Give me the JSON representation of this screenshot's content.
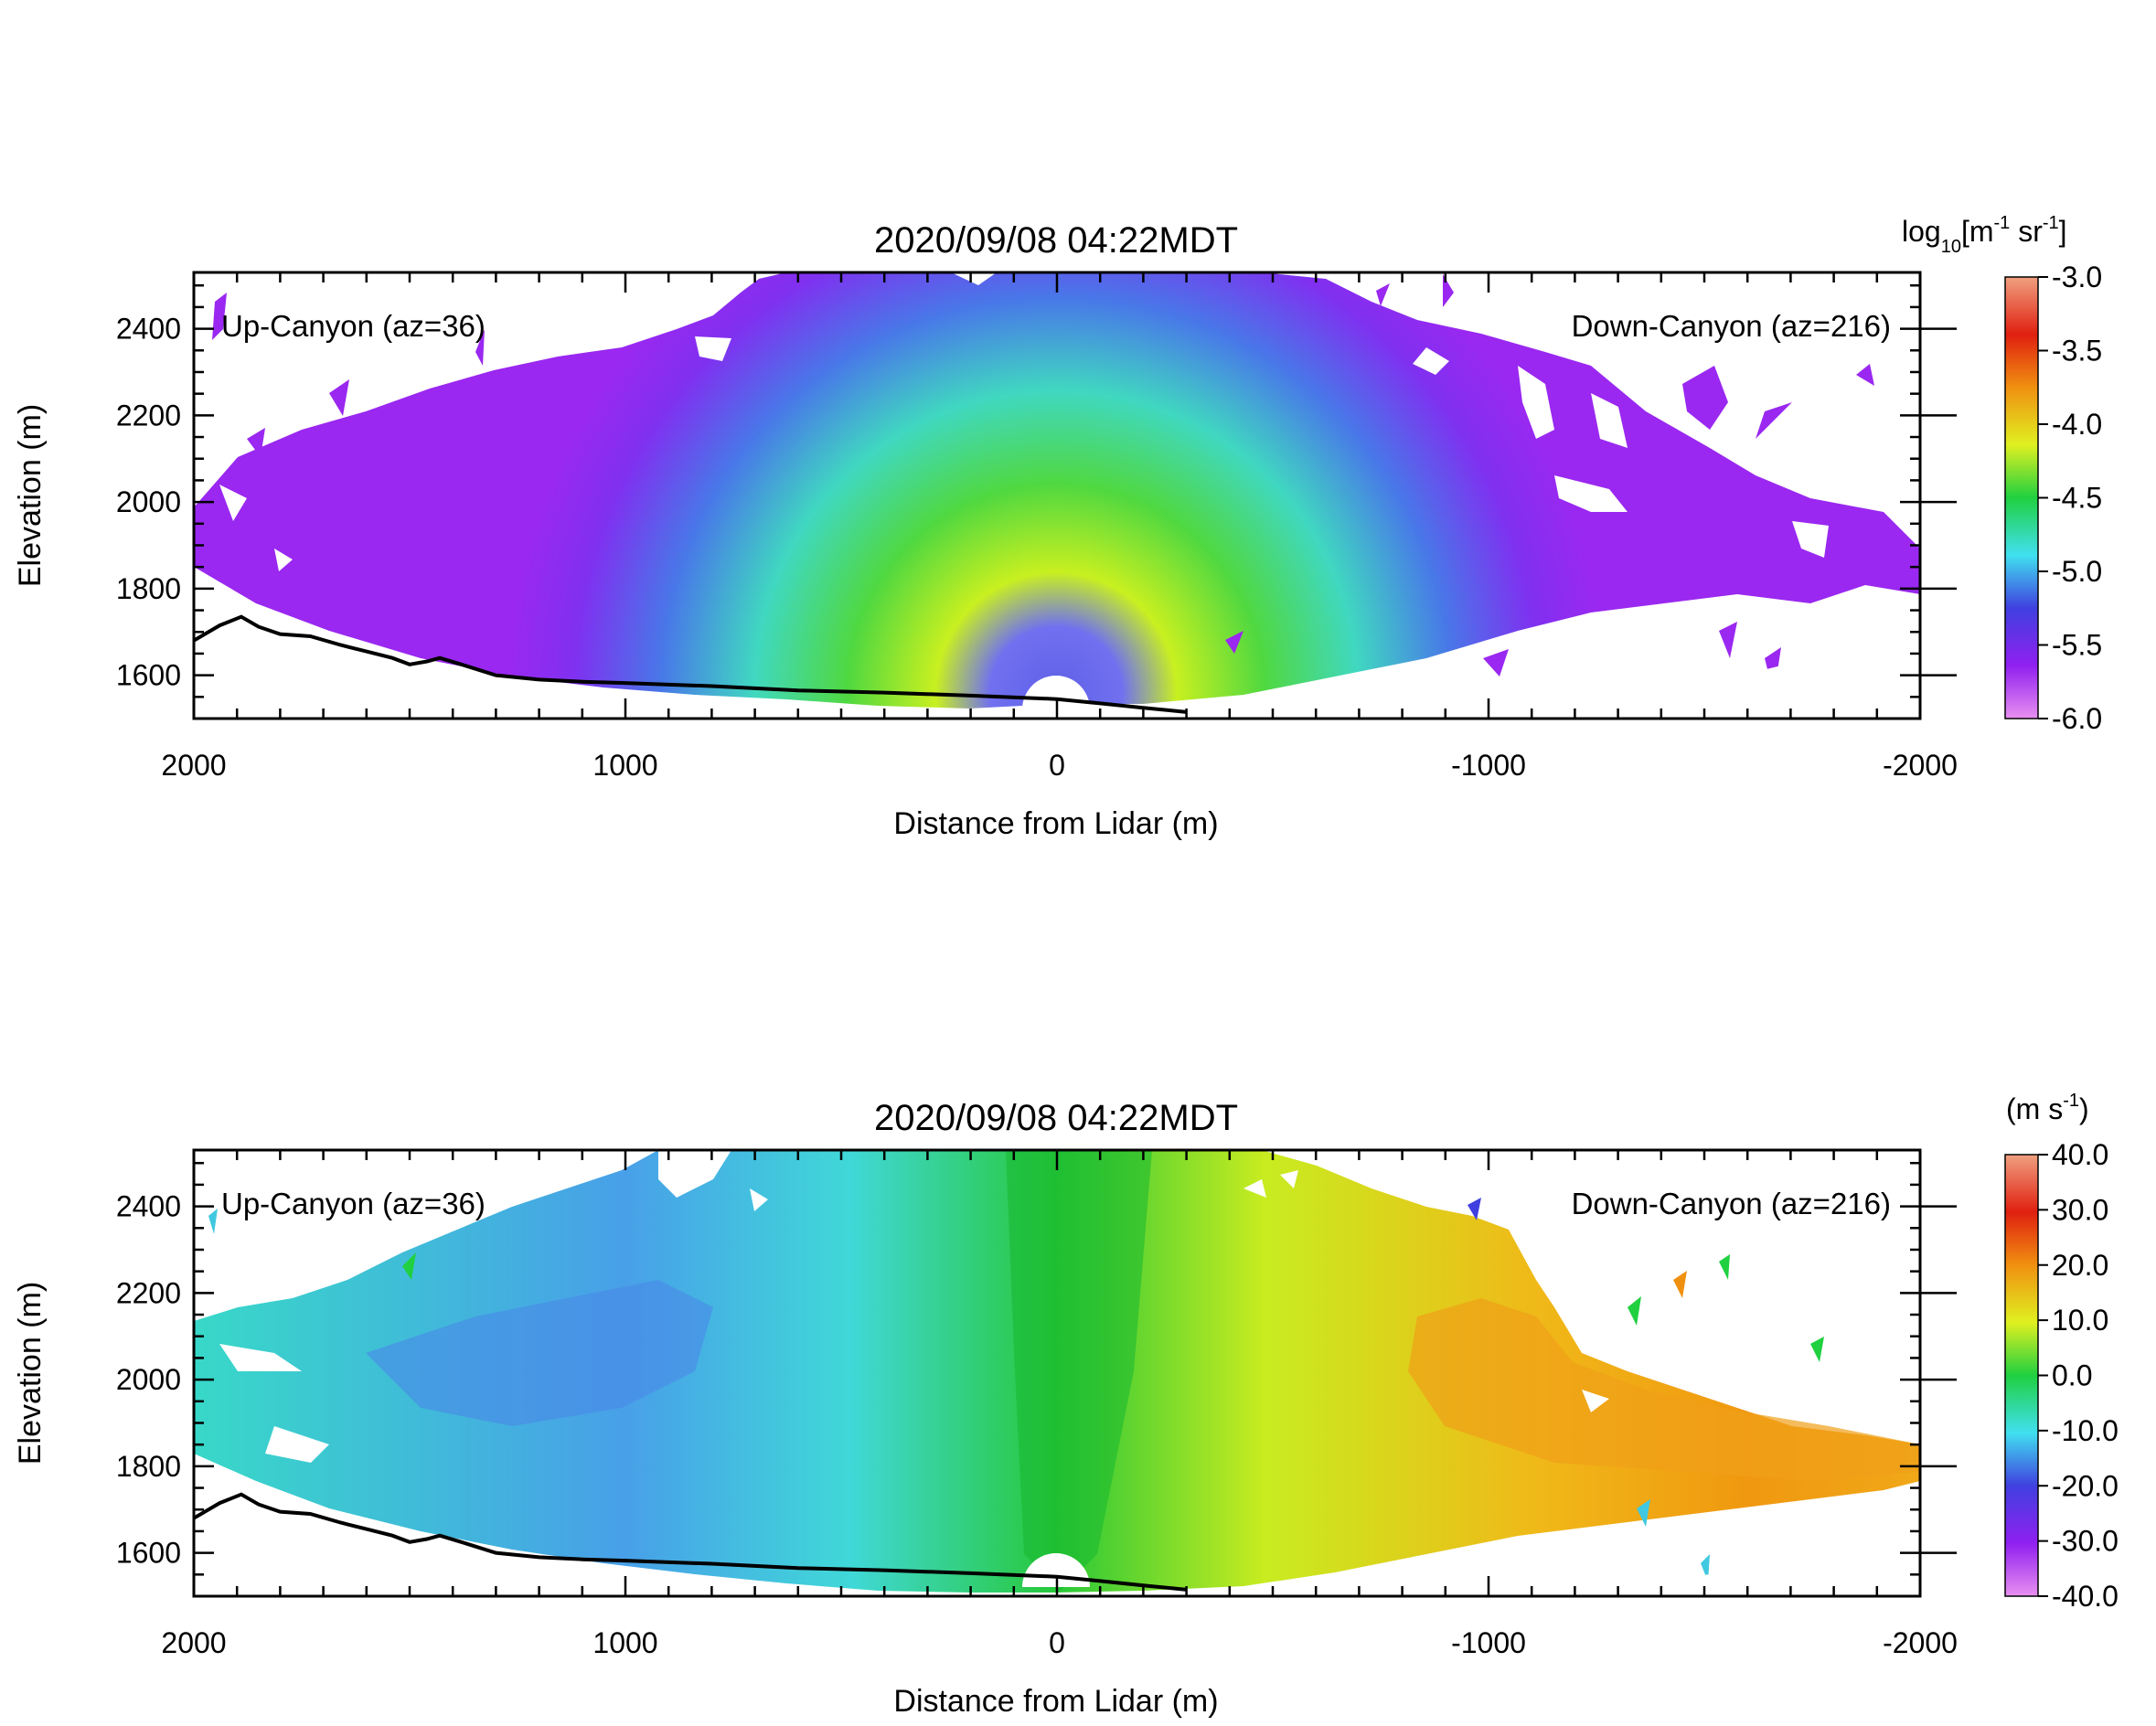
{
  "chart_data": [
    {
      "type": "heatmap",
      "title": "2020/09/08 04:22MDT",
      "xlabel": "Distance from Lidar (m)",
      "ylabel": "Elevation (m)",
      "xlim": [
        2000,
        -2000
      ],
      "ylim": [
        1500,
        2530
      ],
      "x_ticks": [
        "2000",
        "1000",
        "0",
        "-1000",
        "-2000"
      ],
      "x_tick_values": [
        2000,
        1000,
        0,
        -1000,
        -2000
      ],
      "y_ticks": [
        "1600",
        "1800",
        "2000",
        "2200",
        "2400"
      ],
      "y_tick_values": [
        1600,
        1800,
        2000,
        2200,
        2400
      ],
      "annotations": [
        "Up-Canyon (az=36)",
        "Down-Canyon (az=216)"
      ],
      "variable": "backscatter",
      "colorbar": {
        "unit_main": "log",
        "unit_sub": "10",
        "unit_rest": "[m",
        "unit_sup1": "-1",
        "unit_mid": " sr",
        "unit_sup2": "-1",
        "unit_end": "]",
        "range": [
          -6.0,
          -3.0
        ],
        "ticks": [
          "-3.0",
          "-3.5",
          "-4.0",
          "-4.5",
          "-5.0",
          "-5.5",
          "-6.0"
        ],
        "tick_values": [
          -3.0,
          -3.5,
          -4.0,
          -4.5,
          -5.0,
          -5.5,
          -6.0
        ],
        "colors": [
          "#e890f0",
          "#9020f0",
          "#4040e0",
          "#40e0f0",
          "#20d040",
          "#e0f020",
          "#f09010",
          "#e02010",
          "#f0a080"
        ]
      },
      "terrain": [
        [
          2000,
          1680
        ],
        [
          1940,
          1715
        ],
        [
          1890,
          1735
        ],
        [
          1850,
          1712
        ],
        [
          1800,
          1695
        ],
        [
          1730,
          1690
        ],
        [
          1660,
          1670
        ],
        [
          1600,
          1655
        ],
        [
          1540,
          1640
        ],
        [
          1500,
          1625
        ],
        [
          1460,
          1632
        ],
        [
          1430,
          1640
        ],
        [
          1380,
          1625
        ],
        [
          1300,
          1600
        ],
        [
          1200,
          1590
        ],
        [
          1100,
          1585
        ],
        [
          1000,
          1582
        ],
        [
          800,
          1575
        ],
        [
          600,
          1565
        ],
        [
          400,
          1560
        ],
        [
          200,
          1553
        ],
        [
          0,
          1545
        ],
        [
          -100,
          1535
        ],
        [
          -200,
          1525
        ],
        [
          -300,
          1515
        ]
      ]
    },
    {
      "type": "heatmap",
      "title": "2020/09/08 04:22MDT",
      "xlabel": "Distance from Lidar (m)",
      "ylabel": "Elevation (m)",
      "xlim": [
        2000,
        -2000
      ],
      "ylim": [
        1500,
        2530
      ],
      "x_ticks": [
        "2000",
        "1000",
        "0",
        "-1000",
        "-2000"
      ],
      "x_tick_values": [
        2000,
        1000,
        0,
        -1000,
        -2000
      ],
      "y_ticks": [
        "1600",
        "1800",
        "2000",
        "2200",
        "2400"
      ],
      "y_tick_values": [
        1600,
        1800,
        2000,
        2200,
        2400
      ],
      "annotations": [
        "Up-Canyon (az=36)",
        "Down-Canyon (az=216)"
      ],
      "variable": "velocity",
      "colorbar": {
        "unit_main": "(m s",
        "unit_sup1": "-1",
        "unit_end": ")",
        "range": [
          -40.0,
          40.0
        ],
        "ticks": [
          "40.0",
          "30.0",
          "20.0",
          "10.0",
          "0.0",
          "-10.0",
          "-20.0",
          "-30.0",
          "-40.0"
        ],
        "tick_values": [
          40.0,
          30.0,
          20.0,
          10.0,
          0.0,
          -10.0,
          -20.0,
          -30.0,
          -40.0
        ],
        "colors": [
          "#e890f0",
          "#9020f0",
          "#4040e0",
          "#40e0f0",
          "#20d040",
          "#e0f020",
          "#f09010",
          "#e02010",
          "#f0a080"
        ]
      },
      "terrain": [
        [
          2000,
          1680
        ],
        [
          1940,
          1715
        ],
        [
          1890,
          1735
        ],
        [
          1850,
          1712
        ],
        [
          1800,
          1695
        ],
        [
          1730,
          1690
        ],
        [
          1660,
          1670
        ],
        [
          1600,
          1655
        ],
        [
          1540,
          1640
        ],
        [
          1500,
          1625
        ],
        [
          1460,
          1632
        ],
        [
          1430,
          1640
        ],
        [
          1380,
          1625
        ],
        [
          1300,
          1600
        ],
        [
          1200,
          1590
        ],
        [
          1100,
          1585
        ],
        [
          1000,
          1582
        ],
        [
          800,
          1575
        ],
        [
          600,
          1565
        ],
        [
          400,
          1560
        ],
        [
          200,
          1553
        ],
        [
          0,
          1545
        ],
        [
          -100,
          1535
        ],
        [
          -200,
          1525
        ],
        [
          -300,
          1515
        ]
      ]
    }
  ]
}
